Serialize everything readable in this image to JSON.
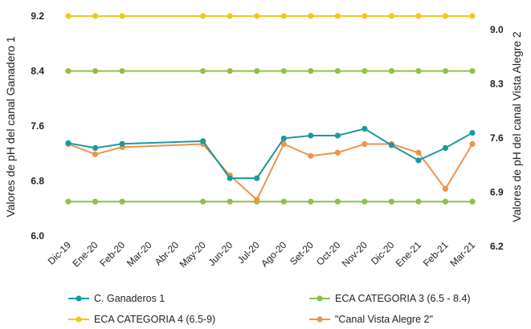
{
  "chart_data": {
    "type": "line",
    "categories": [
      "Dic-19",
      "Ene-20",
      "Feb-20",
      "Mar-20",
      "Abr-20",
      "May-20",
      "Jun-20",
      "Jul-20",
      "Ago-20",
      "Set-20",
      "Oct-20",
      "Nov-20",
      "Dic-20",
      "Ene-21",
      "Feb-21",
      "Mar-21"
    ],
    "ylabel_left": "Valores de pH del canal Ganadero 1",
    "ylabel_right": "Valores de pH del canal Vista Alegre 2",
    "y_left": {
      "ticks": [
        "9.2",
        "8.4",
        "7.6",
        "6.8",
        "6.0"
      ],
      "range": [
        6.0,
        9.2
      ]
    },
    "y_right": {
      "ticks": [
        "9.0",
        "8.3",
        "7.6",
        "6.9",
        "6.2"
      ],
      "range": [
        6.2,
        9.0
      ]
    },
    "series": [
      {
        "name": "C. Ganaderos 1",
        "axis": "left",
        "color": "#1a9a9a",
        "values": [
          7.35,
          7.28,
          7.34,
          null,
          null,
          7.38,
          6.84,
          6.84,
          7.42,
          7.46,
          7.46,
          7.56,
          7.32,
          7.1,
          7.28,
          7.5
        ]
      },
      {
        "name": "ECA CATEGORIA 3 (6.5 - 8.4)",
        "axis": "left",
        "color": "#8dc04a",
        "values": [
          6.5,
          6.5,
          6.5,
          null,
          null,
          6.5,
          6.5,
          6.5,
          6.5,
          6.5,
          6.5,
          6.5,
          6.5,
          6.5,
          6.5,
          6.5
        ],
        "values_2": [
          8.4,
          8.4,
          8.4,
          null,
          null,
          8.4,
          8.4,
          8.4,
          8.4,
          8.4,
          8.4,
          8.4,
          8.4,
          8.4,
          8.4,
          8.4
        ]
      },
      {
        "name": "ECA CATEGORIA 4 (6.5-9)",
        "axis": "right",
        "color": "#f5c518",
        "values": [
          9.0,
          9.0,
          9.0,
          null,
          null,
          9.0,
          9.0,
          9.0,
          9.0,
          9.0,
          9.0,
          9.0,
          9.0,
          9.0,
          9.0,
          9.0
        ]
      },
      {
        "name": "\"Canal Vista Alegre 2\"",
        "axis": "right",
        "color": "#f0924a",
        "values": [
          7.37,
          7.24,
          7.33,
          null,
          null,
          7.37,
          6.97,
          6.66,
          7.37,
          7.22,
          7.26,
          7.37,
          7.37,
          7.26,
          6.8,
          7.37
        ]
      }
    ],
    "grid": false,
    "legend_position": "bottom"
  }
}
